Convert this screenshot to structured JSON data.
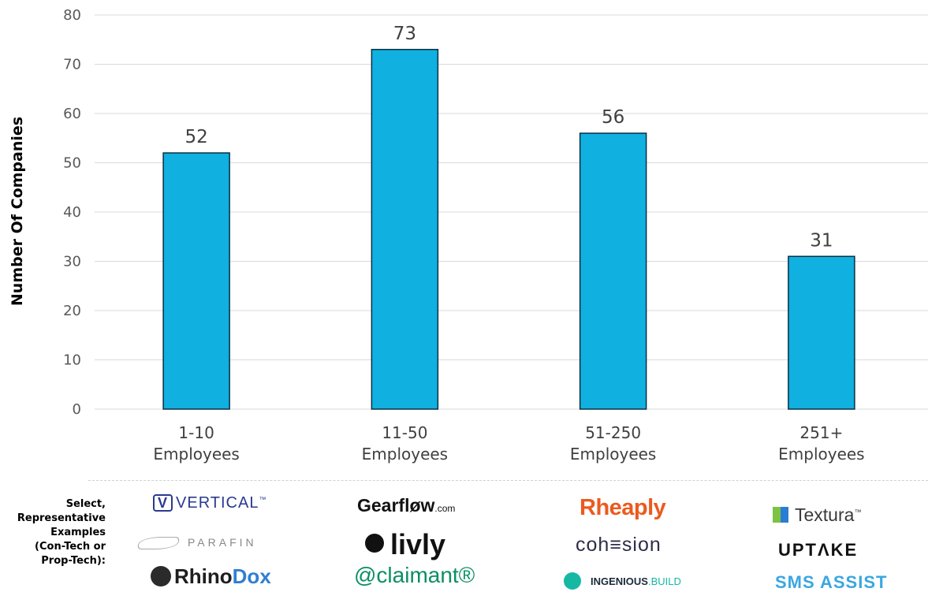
{
  "chart_data": {
    "type": "bar",
    "categories": [
      [
        "1-10",
        "Employees"
      ],
      [
        "11-50",
        "Employees"
      ],
      [
        "51-250",
        "Employees"
      ],
      [
        "251+",
        "Employees"
      ]
    ],
    "values": [
      52,
      73,
      56,
      31
    ],
    "data_labels": [
      "52",
      "73",
      "56",
      "31"
    ],
    "ylabel": "Number Of Companies",
    "ylim": [
      0,
      80
    ],
    "yticks": [
      0,
      10,
      20,
      30,
      40,
      50,
      60,
      70,
      80
    ],
    "grid": true,
    "bar_color": "#10b0e0",
    "bar_edge_color": "#0a2f42"
  },
  "examples": {
    "label_lines": [
      "Select,",
      "Representative",
      "Examples",
      "(Con-Tech or",
      "Prop-Tech):"
    ],
    "logos": {
      "vertical": {
        "mark": "V",
        "text": "VERTICAL",
        "suffix": "™"
      },
      "parafin": {
        "text": "PARAFIN"
      },
      "rhinodox": {
        "text_a": "Rhino",
        "text_b": "Dox"
      },
      "gearflow": {
        "text": "Gearfløw",
        "suffix": ".com"
      },
      "livly": {
        "text": "livly"
      },
      "aclaimant": {
        "text": "@claimant®"
      },
      "rheaply": {
        "text": "Rheaply"
      },
      "cohesion": {
        "text": "coh≡sion"
      },
      "ingenious": {
        "text_a": "INGENIOUS",
        "text_b": ".BUILD"
      },
      "textura": {
        "text": "Textura",
        "suffix": "™"
      },
      "uptake": {
        "text": "UPTΛKE"
      },
      "sms": {
        "text": "SMS ASSIST"
      }
    }
  }
}
